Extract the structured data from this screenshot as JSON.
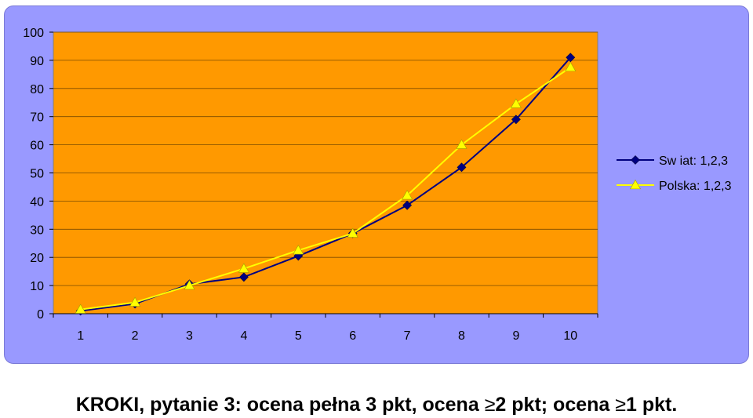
{
  "chart_data": {
    "type": "line",
    "categories": [
      "1",
      "2",
      "3",
      "4",
      "5",
      "6",
      "7",
      "8",
      "9",
      "10"
    ],
    "series": [
      {
        "name": "Sw iat: 1,2,3",
        "color": "#000080",
        "marker": "diamond",
        "values": [
          1,
          3.5,
          10.5,
          13,
          20.5,
          28.5,
          38.5,
          52,
          69,
          91
        ]
      },
      {
        "name": "Polska: 1,2,3",
        "color": "#ffff00",
        "marker": "triangle",
        "values": [
          1.5,
          4,
          10,
          16,
          22.5,
          28.5,
          42,
          60,
          74.5,
          87.5
        ]
      }
    ],
    "ylim": [
      0,
      100
    ],
    "yticks": [
      0,
      10,
      20,
      30,
      40,
      50,
      60,
      70,
      80,
      90,
      100
    ],
    "grid": true,
    "plot_background": "#ff9900",
    "panel_background": "#9999ff",
    "legend_position": "right"
  },
  "caption": {
    "part1": "KROKI, pytanie 3: ocena pełna 3 pkt, ocena ",
    "ge1": "≥",
    "part2": "2 pkt; ocena ",
    "ge2": "≥",
    "part3": "1 pkt."
  }
}
